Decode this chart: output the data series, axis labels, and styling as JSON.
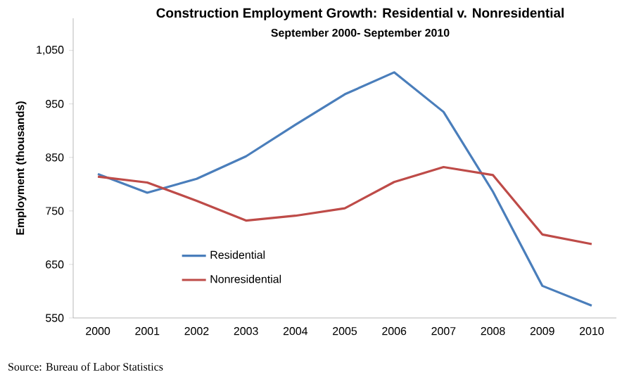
{
  "chart_data": {
    "type": "line",
    "title": "Construction Employment Growth:  Residential v. Nonresidential",
    "subtitle": "September 2000- September 2010",
    "ylabel": "Employment (thousands)",
    "categories": [
      "2000",
      "2001",
      "2002",
      "2003",
      "2004",
      "2005",
      "2006",
      "2007",
      "2008",
      "2009",
      "2010"
    ],
    "series": [
      {
        "name": "Residential",
        "color": "#4a7ebb",
        "values": [
          819,
          784,
          810,
          852,
          911,
          968,
          1009,
          935,
          786,
          610,
          573
        ]
      },
      {
        "name": "Nonresidential",
        "color": "#be4b48",
        "values": [
          814,
          803,
          769,
          732,
          741,
          755,
          804,
          832,
          817,
          706,
          688
        ]
      }
    ],
    "ylim": [
      550,
      1110
    ],
    "yticks": [
      {
        "value": 550,
        "label": "550"
      },
      {
        "value": 650,
        "label": "650"
      },
      {
        "value": 750,
        "label": "750"
      },
      {
        "value": 850,
        "label": "850"
      },
      {
        "value": 950,
        "label": "950"
      },
      {
        "value": 1050,
        "label": "1,050"
      }
    ],
    "grid": false,
    "legend": "bottom left",
    "marker": "none",
    "line_style": "solid",
    "annotations": [
      "Source:  Bureau of Labor Statistics"
    ]
  }
}
